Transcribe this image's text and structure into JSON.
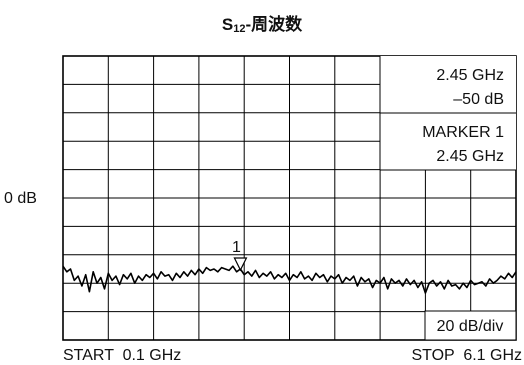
{
  "chart_data": {
    "type": "line",
    "title": {
      "prefix": "S",
      "subscript": "12",
      "suffix": "-周波数"
    },
    "reference_label": "0 dB",
    "scale_label": "20 dB/div",
    "x_axis": {
      "start_label": "START  0.1 GHz",
      "stop_label": "STOP  6.1 GHz",
      "range_ghz": [
        0.1,
        6.1
      ]
    },
    "y_axis": {
      "unit": "dB",
      "reference_db": 0,
      "db_per_div": 20,
      "divisions": 10,
      "reference_division_from_top": 5
    },
    "grid": true,
    "marker": {
      "number": "1",
      "frequency_ghz": 2.45,
      "level_db": -50
    },
    "readout": {
      "line1": "2.45 GHz",
      "line2": "–50 dB",
      "line3": "MARKER 1",
      "line4": "2.45 GHz"
    },
    "series": [
      {
        "x_ghz": [
          0.1,
          0.15,
          0.2,
          0.25,
          0.3,
          0.35,
          0.4,
          0.45,
          0.5,
          0.55,
          0.6,
          0.65,
          0.7,
          0.75,
          0.8,
          0.85,
          0.9,
          0.95,
          1.0,
          1.05,
          1.1,
          1.15,
          1.2,
          1.25,
          1.3,
          1.35,
          1.4,
          1.45,
          1.5,
          1.55,
          1.6,
          1.65,
          1.7,
          1.75,
          1.8,
          1.85,
          1.9,
          1.95,
          2.0,
          2.05,
          2.1,
          2.15,
          2.2,
          2.25,
          2.3,
          2.35,
          2.4,
          2.45,
          2.5,
          2.55,
          2.6,
          2.65,
          2.7,
          2.75,
          2.8,
          2.85,
          2.9,
          2.95,
          3.0,
          3.05,
          3.1,
          3.15,
          3.2,
          3.25,
          3.3,
          3.35,
          3.4,
          3.45,
          3.5,
          3.55,
          3.6,
          3.65,
          3.7,
          3.75,
          3.8,
          3.85,
          3.9,
          3.95,
          4.0,
          4.05,
          4.1,
          4.15,
          4.2,
          4.25,
          4.3,
          4.35,
          4.4,
          4.45,
          4.5,
          4.55,
          4.6,
          4.65,
          4.7,
          4.75,
          4.8,
          4.85,
          4.9,
          4.95,
          5.0,
          5.05,
          5.1,
          5.15,
          5.2,
          5.25,
          5.3,
          5.35,
          5.4,
          5.45,
          5.5,
          5.55,
          5.6,
          5.65,
          5.7,
          5.75,
          5.8,
          5.85,
          5.9,
          5.95,
          6.0,
          6.05,
          6.1
        ],
        "values_db": [
          -48,
          -52,
          -50,
          -58,
          -55,
          -62,
          -54,
          -66,
          -52,
          -60,
          -56,
          -64,
          -53,
          -58,
          -55,
          -61,
          -54,
          -57,
          -53,
          -60,
          -55,
          -58,
          -54,
          -56,
          -53,
          -57,
          -52,
          -55,
          -54,
          -58,
          -53,
          -56,
          -52,
          -55,
          -51,
          -54,
          -50,
          -53,
          -49,
          -51,
          -50,
          -52,
          -49,
          -50,
          -51,
          -48,
          -52,
          -50,
          -54,
          -52,
          -55,
          -51,
          -56,
          -53,
          -55,
          -52,
          -57,
          -54,
          -56,
          -53,
          -58,
          -54,
          -56,
          -52,
          -57,
          -55,
          -58,
          -53,
          -56,
          -54,
          -59,
          -55,
          -57,
          -54,
          -60,
          -56,
          -58,
          -55,
          -62,
          -56,
          -59,
          -57,
          -63,
          -58,
          -60,
          -56,
          -64,
          -57,
          -60,
          -58,
          -62,
          -57,
          -61,
          -58,
          -63,
          -59,
          -67,
          -60,
          -58,
          -62,
          -59,
          -64,
          -58,
          -62,
          -61,
          -64,
          -60,
          -63,
          -58,
          -61,
          -60,
          -59,
          -62,
          -57,
          -60,
          -58,
          -55,
          -57,
          -53,
          -56,
          -52
        ]
      }
    ]
  }
}
